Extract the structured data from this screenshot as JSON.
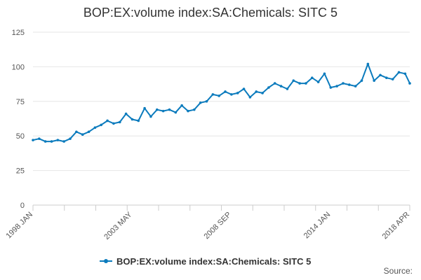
{
  "chart_data": {
    "type": "line",
    "title": "BOP:EX:volume index:SA:Chemicals: SITC 5",
    "xlabel": "",
    "ylabel": "",
    "ylim": [
      0,
      125
    ],
    "y_ticks": [
      0,
      25,
      50,
      75,
      100,
      125
    ],
    "x_ticks": [
      "1998 JAN",
      "2003 MAY",
      "2008 SEP",
      "2014 JAN",
      "2018 APR"
    ],
    "grid": "horizontal",
    "legend_position": "bottom",
    "series": [
      {
        "name": "BOP:EX:volume index:SA:Chemicals: SITC 5",
        "color": "#0b7bbd",
        "x": [
          "1998-01",
          "1998-05",
          "1998-09",
          "1999-01",
          "1999-05",
          "1999-09",
          "2000-01",
          "2000-05",
          "2000-09",
          "2001-01",
          "2001-05",
          "2001-09",
          "2002-01",
          "2002-05",
          "2002-09",
          "2003-01",
          "2003-05",
          "2003-09",
          "2004-01",
          "2004-05",
          "2004-09",
          "2005-01",
          "2005-05",
          "2005-09",
          "2006-01",
          "2006-05",
          "2006-09",
          "2007-01",
          "2007-05",
          "2007-09",
          "2008-01",
          "2008-05",
          "2008-09",
          "2009-01",
          "2009-05",
          "2009-09",
          "2010-01",
          "2010-05",
          "2010-09",
          "2011-01",
          "2011-05",
          "2011-09",
          "2012-01",
          "2012-05",
          "2012-09",
          "2013-01",
          "2013-05",
          "2013-09",
          "2014-01",
          "2014-05",
          "2014-09",
          "2015-01",
          "2015-05",
          "2015-09",
          "2016-01",
          "2016-05",
          "2016-09",
          "2017-01",
          "2017-05",
          "2017-09",
          "2018-01",
          "2018-04"
        ],
        "values": [
          47,
          48,
          46,
          46,
          47,
          46,
          48,
          53,
          51,
          53,
          56,
          58,
          61,
          59,
          60,
          66,
          62,
          61,
          70,
          64,
          69,
          68,
          69,
          67,
          72,
          68,
          69,
          74,
          75,
          80,
          79,
          82,
          80,
          81,
          84,
          78,
          82,
          81,
          85,
          88,
          86,
          84,
          90,
          88,
          88,
          92,
          89,
          95,
          85,
          86,
          88,
          87,
          86,
          90,
          102,
          90,
          94,
          92,
          91,
          96,
          95,
          88
        ]
      }
    ]
  },
  "source_label": "Source:"
}
